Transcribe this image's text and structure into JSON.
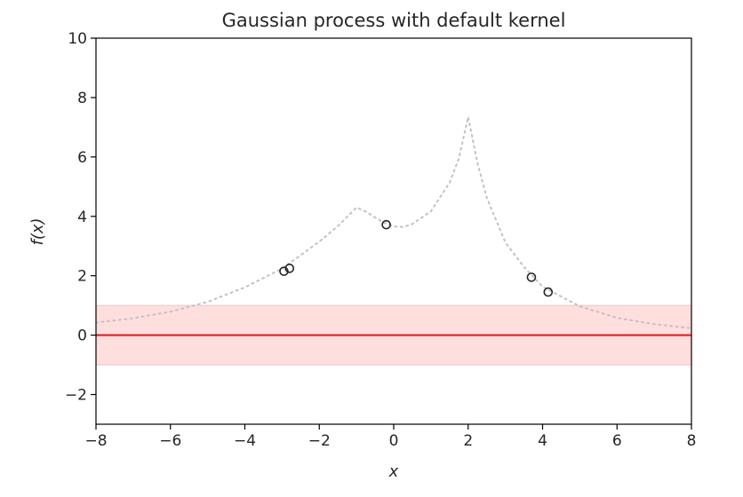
{
  "chart_data": {
    "type": "line",
    "title": "Gaussian process with default kernel",
    "xlabel": "x",
    "ylabel": "f(x)",
    "xlim": [
      -8,
      8
    ],
    "ylim": [
      -3,
      10
    ],
    "xticks": [
      -8,
      -6,
      -4,
      -2,
      0,
      2,
      4,
      6,
      8
    ],
    "yticks": [
      -2,
      0,
      2,
      4,
      6,
      8,
      10
    ],
    "xtick_labels": [
      "−8",
      "−6",
      "−4",
      "−2",
      "0",
      "2",
      "4",
      "6",
      "8"
    ],
    "ytick_labels": [
      "−2",
      "0",
      "2",
      "4",
      "6",
      "8",
      "10"
    ],
    "grid": false,
    "series": [
      {
        "role": "confidence-band",
        "color": "#ffdede",
        "x": [
          -8,
          8
        ],
        "lower": [
          -1,
          -1
        ],
        "upper": [
          1,
          1
        ]
      },
      {
        "role": "mean",
        "color": "#e8262d",
        "x": [
          -8,
          8
        ],
        "values": [
          0,
          0
        ]
      },
      {
        "role": "true-function",
        "style": "dotted",
        "color": "#c2c2c2",
        "x": [
          -8,
          -7,
          -6,
          -5,
          -4,
          -3,
          -2,
          -1.5,
          -1,
          -0.75,
          -0.5,
          -0.25,
          0,
          0.25,
          0.5,
          1,
          1.5,
          1.75,
          2,
          2.25,
          2.5,
          3,
          3.5,
          4,
          5,
          6,
          7,
          8
        ],
        "values": [
          0.42,
          0.57,
          0.79,
          1.12,
          1.61,
          2.24,
          3.15,
          3.67,
          4.3,
          4.16,
          3.96,
          3.78,
          3.66,
          3.64,
          3.74,
          4.17,
          5.13,
          5.95,
          7.35,
          5.8,
          4.63,
          3.12,
          2.3,
          1.63,
          0.97,
          0.58,
          0.37,
          0.23
        ]
      },
      {
        "role": "observations",
        "marker": "open-circle",
        "color": "#262626",
        "x": [
          -2.95,
          -2.8,
          -0.2,
          3.7,
          4.15
        ],
        "values": [
          2.15,
          2.25,
          3.72,
          1.95,
          1.45
        ]
      }
    ]
  }
}
